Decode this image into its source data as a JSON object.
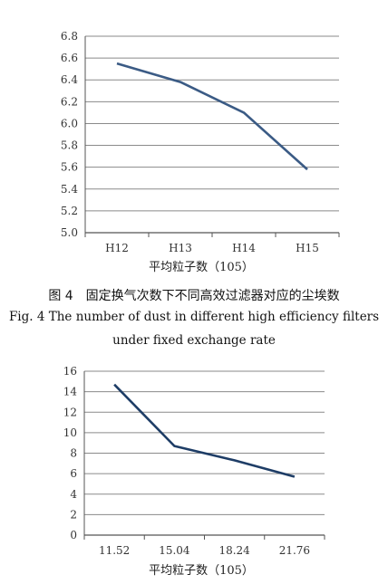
{
  "chart_data": [
    {
      "type": "line",
      "categories": [
        "H12",
        "H13",
        "H14",
        "H15"
      ],
      "values": [
        6.55,
        6.38,
        6.1,
        5.58
      ],
      "xlabel": "平均粒子数（105）",
      "ylabel": "",
      "ylim": [
        5.0,
        6.8
      ],
      "yticks": [
        "5.0",
        "5.2",
        "5.4",
        "5.6",
        "5.8",
        "6.0",
        "6.2",
        "6.4",
        "6.6",
        "6.8"
      ],
      "grid": true,
      "line_color": "#3b5b85"
    },
    {
      "type": "line",
      "categories": [
        "11.52",
        "15.04",
        "18.24",
        "21.76"
      ],
      "values": [
        14.7,
        8.7,
        7.3,
        5.7
      ],
      "xlabel": "平均粒子数（105）",
      "ylabel": "",
      "ylim": [
        0,
        16
      ],
      "yticks": [
        "0",
        "2",
        "4",
        "6",
        "8",
        "10",
        "12",
        "14",
        "16"
      ],
      "grid": true,
      "line_color": "#1e3d66"
    }
  ],
  "caption": {
    "cn": "图 4　固定换气次数下不同高效过滤器对应的尘埃数",
    "en_line1": "Fig. 4 The number of dust in different high efficiency filters",
    "en_line2": "under fixed exchange rate"
  }
}
